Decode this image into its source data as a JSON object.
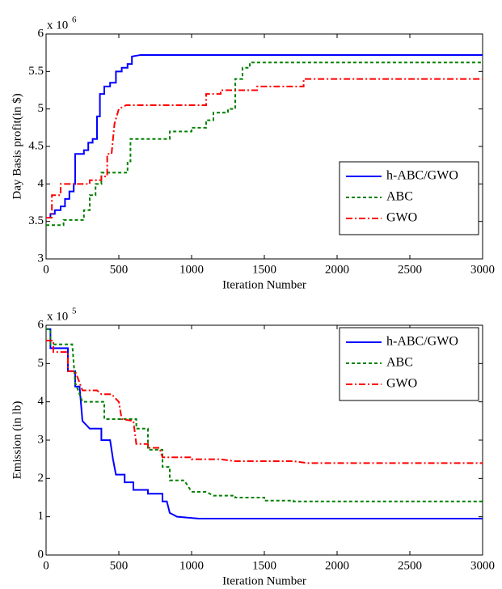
{
  "chart_data": [
    {
      "type": "line",
      "xlabel": "Iteration Number",
      "ylabel": "Day Basis profit(in $)",
      "y_multiplier": "x 10",
      "y_multiplier_exp": "6",
      "xlim": [
        0,
        3000
      ],
      "xticks": [
        0,
        500,
        1000,
        1500,
        2000,
        2500,
        3000
      ],
      "ylim": [
        3,
        6
      ],
      "yticks": [
        3,
        3.5,
        4,
        4.5,
        5,
        5.5,
        6
      ],
      "legend": "lower right",
      "series": [
        {
          "name": "h-ABC/GWO",
          "color": "#0000ff",
          "linestyle": "solid",
          "x": [
            0,
            30,
            30,
            60,
            60,
            100,
            100,
            130,
            130,
            160,
            160,
            190,
            190,
            200,
            200,
            260,
            260,
            290,
            290,
            320,
            320,
            350,
            350,
            370,
            370,
            400,
            400,
            440,
            440,
            480,
            480,
            520,
            520,
            560,
            560,
            590,
            590,
            650,
            3000
          ],
          "values": [
            3.55,
            3.55,
            3.6,
            3.6,
            3.65,
            3.65,
            3.7,
            3.7,
            3.8,
            3.8,
            3.9,
            3.9,
            4.0,
            4.0,
            4.4,
            4.4,
            4.45,
            4.45,
            4.55,
            4.55,
            4.6,
            4.6,
            4.9,
            4.9,
            5.2,
            5.2,
            5.3,
            5.3,
            5.35,
            5.35,
            5.5,
            5.5,
            5.55,
            5.55,
            5.6,
            5.6,
            5.7,
            5.72,
            5.72
          ]
        },
        {
          "name": "ABC",
          "color": "#008000",
          "linestyle": "dashed",
          "x": [
            0,
            120,
            120,
            260,
            260,
            300,
            300,
            340,
            340,
            380,
            380,
            560,
            560,
            580,
            580,
            850,
            850,
            1000,
            1000,
            1100,
            1100,
            1150,
            1150,
            1250,
            1250,
            1300,
            1300,
            1350,
            1350,
            1400,
            1400,
            3000
          ],
          "values": [
            3.45,
            3.45,
            3.52,
            3.52,
            3.65,
            3.65,
            3.85,
            3.85,
            4.0,
            4.0,
            4.15,
            4.15,
            4.3,
            4.3,
            4.6,
            4.6,
            4.7,
            4.7,
            4.75,
            4.75,
            4.85,
            4.85,
            4.95,
            4.95,
            5.0,
            5.0,
            5.4,
            5.4,
            5.55,
            5.55,
            5.62,
            5.62
          ]
        },
        {
          "name": "GWO",
          "color": "#ff0000",
          "linestyle": "dashdot",
          "x": [
            0,
            40,
            40,
            100,
            100,
            300,
            300,
            380,
            380,
            420,
            420,
            450,
            470,
            500,
            550,
            1100,
            1100,
            1200,
            1200,
            1450,
            1450,
            1770,
            1770,
            3000
          ],
          "values": [
            3.55,
            3.55,
            3.85,
            3.85,
            4.0,
            4.0,
            4.05,
            4.05,
            4.1,
            4.1,
            4.4,
            4.4,
            4.8,
            5.0,
            5.05,
            5.05,
            5.2,
            5.2,
            5.25,
            5.25,
            5.3,
            5.3,
            5.4,
            5.4
          ]
        }
      ]
    },
    {
      "type": "line",
      "xlabel": "Iteration Number",
      "ylabel": "Emission (in lb)",
      "y_multiplier": "x 10",
      "y_multiplier_exp": "5",
      "xlim": [
        0,
        3000
      ],
      "xticks": [
        0,
        500,
        1000,
        1500,
        2000,
        2500,
        3000
      ],
      "ylim": [
        0,
        6
      ],
      "yticks": [
        0,
        1,
        2,
        3,
        4,
        5,
        6
      ],
      "legend": "upper right",
      "series": [
        {
          "name": "h-ABC/GWO",
          "color": "#0000ff",
          "linestyle": "solid",
          "x": [
            0,
            30,
            30,
            150,
            150,
            200,
            200,
            230,
            250,
            300,
            300,
            380,
            380,
            440,
            460,
            480,
            480,
            540,
            540,
            600,
            600,
            700,
            700,
            800,
            800,
            830,
            850,
            900,
            900,
            1050,
            3000
          ],
          "values": [
            5.9,
            5.9,
            5.4,
            5.4,
            4.8,
            4.8,
            4.4,
            4.4,
            3.5,
            3.3,
            3.3,
            3.3,
            3.0,
            3.0,
            2.5,
            2.1,
            2.1,
            2.1,
            1.9,
            1.9,
            1.7,
            1.7,
            1.6,
            1.6,
            1.4,
            1.4,
            1.1,
            1.0,
            1.0,
            0.95,
            0.95
          ]
        },
        {
          "name": "ABC",
          "color": "#008000",
          "linestyle": "dashed",
          "x": [
            0,
            30,
            30,
            180,
            200,
            250,
            400,
            400,
            620,
            620,
            700,
            700,
            800,
            800,
            850,
            850,
            950,
            1000,
            1100,
            1150,
            1300,
            1300,
            1500,
            1500,
            1700,
            1700,
            3000
          ],
          "values": [
            5.9,
            5.9,
            5.5,
            5.5,
            4.5,
            4.0,
            4.0,
            3.55,
            3.55,
            3.3,
            3.3,
            2.75,
            2.75,
            2.3,
            2.3,
            1.95,
            1.95,
            1.65,
            1.65,
            1.55,
            1.55,
            1.5,
            1.5,
            1.42,
            1.42,
            1.4,
            1.4
          ]
        },
        {
          "name": "GWO",
          "color": "#ff0000",
          "linestyle": "dashdot",
          "x": [
            0,
            50,
            50,
            150,
            150,
            200,
            250,
            350,
            380,
            450,
            500,
            520,
            600,
            620,
            700,
            700,
            780,
            800,
            1000,
            1000,
            1200,
            1300,
            1700,
            1800,
            3000
          ],
          "values": [
            5.6,
            5.6,
            5.3,
            5.3,
            4.8,
            4.8,
            4.3,
            4.3,
            4.2,
            4.2,
            4.0,
            3.55,
            3.5,
            2.9,
            2.9,
            2.8,
            2.8,
            2.55,
            2.55,
            2.5,
            2.5,
            2.45,
            2.45,
            2.4,
            2.4
          ]
        }
      ]
    }
  ]
}
